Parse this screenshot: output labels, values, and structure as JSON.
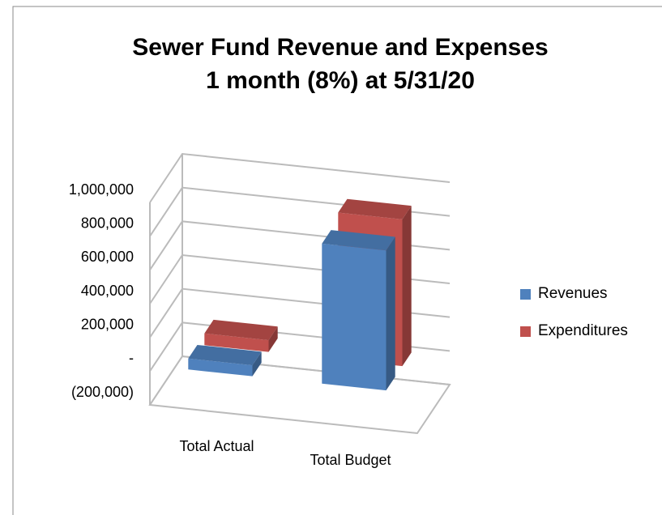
{
  "chart_data": {
    "type": "bar3d",
    "title": "Sewer Fund Revenue and Expenses",
    "subtitle": "1 month (8%) at 5/31/20",
    "categories": [
      "Total Actual",
      "Total Budget"
    ],
    "series": [
      {
        "name": "Revenues",
        "color": "#4f81bd",
        "values": [
          65000,
          830000
        ]
      },
      {
        "name": "Expenditures",
        "color": "#c0504d",
        "values": [
          70000,
          870000
        ]
      }
    ],
    "ylim": [
      -200000,
      1000000
    ],
    "yticks": [
      {
        "value": -200000,
        "label": "(200,000)"
      },
      {
        "value": 0,
        "label": "-"
      },
      {
        "value": 200000,
        "label": "200,000"
      },
      {
        "value": 400000,
        "label": "400,000"
      },
      {
        "value": 600000,
        "label": "600,000"
      },
      {
        "value": 800000,
        "label": "800,000"
      },
      {
        "value": 1000000,
        "label": "1,000,000"
      }
    ],
    "grid": true,
    "legend": "right"
  }
}
